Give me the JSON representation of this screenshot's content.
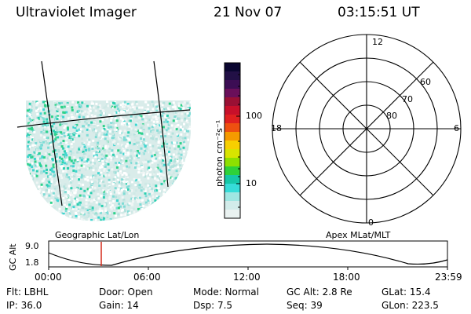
{
  "header": {
    "instrument": "Ultraviolet Imager",
    "date": "21 Nov 07",
    "time": "03:15:51 UT"
  },
  "colorbar": {
    "unit_label": "photon cm⁻²s⁻¹",
    "ticks": [
      "100",
      "10"
    ],
    "colors": [
      "#0a0630",
      "#221046",
      "#3c0d54",
      "#6a0f5a",
      "#9a1034",
      "#c8102a",
      "#e02020",
      "#ee5010",
      "#f59a00",
      "#f7cf00",
      "#d8e400",
      "#8ee000",
      "#2ed23a",
      "#16c8a8",
      "#36dcd8",
      "#9fe6e2",
      "#d2ecea",
      "#eaf2f1"
    ]
  },
  "polar_plot": {
    "mlt_labels": {
      "top": "12",
      "left": "18",
      "right": "6",
      "bottom": "0"
    },
    "lat_labels": [
      "60",
      "70",
      "80"
    ]
  },
  "altitude_plot": {
    "left_label": "Geographic Lat/Lon",
    "right_label": "Apex MLat/MLT",
    "ylabel": "GC Alt",
    "yticks": [
      "9.0",
      "1.8"
    ],
    "xticks": [
      "00:00",
      "06:00",
      "12:00",
      "18:00",
      "23:59"
    ]
  },
  "status": {
    "row1": {
      "filter": "Flt: LBHL",
      "door": "Door: Open",
      "mode": "Mode: Normal",
      "gc_alt": "GC Alt: 2.8 Re",
      "glat": "GLat:  15.4"
    },
    "row2": {
      "ip": "IP: 36.0",
      "gain": "Gain: 14",
      "dsp": "Dsp:     7.5",
      "seq": "Seq: 39",
      "glon": "GLon: 223.5"
    }
  }
}
